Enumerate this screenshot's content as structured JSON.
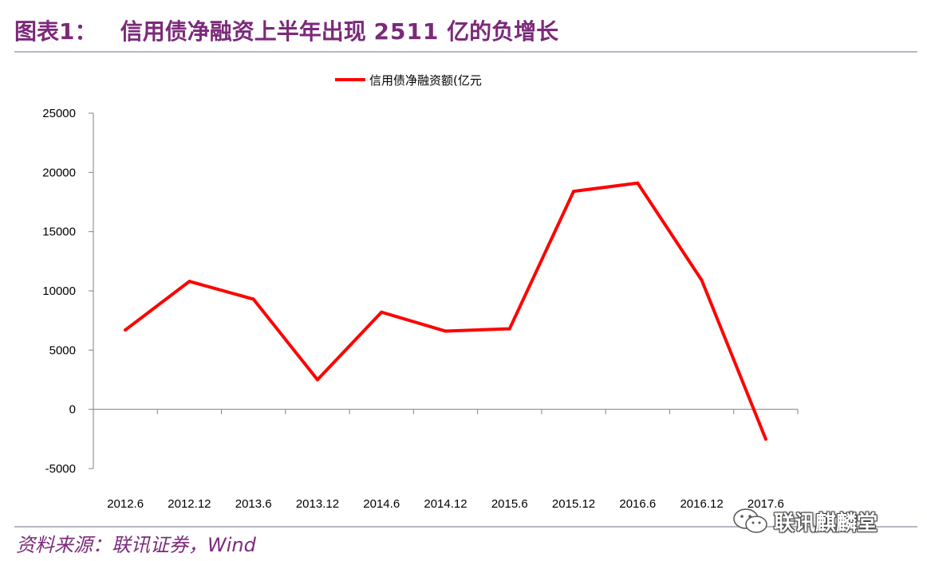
{
  "header": {
    "label": "图表1：",
    "title_pre": "信用债净融资上半年出现 ",
    "title_num": "2511",
    "title_post": " 亿的负增长"
  },
  "source": "资料来源：联讯证券，Wind",
  "watermark": {
    "text": "联讯麒麟堂",
    "icon": "wechat-icon"
  },
  "colors": {
    "accent": "#7b2a7a",
    "series": "#ff0000",
    "rule": "#b8b6c6"
  },
  "chart_data": {
    "type": "line",
    "legend": "top-center",
    "x": [
      "2012.6",
      "2012.12",
      "2013.6",
      "2013.12",
      "2014.6",
      "2014.12",
      "2015.6",
      "2015.12",
      "2016.6",
      "2016.12",
      "2017.6"
    ],
    "series": [
      {
        "name": "信用债净融资额(亿元",
        "values": [
          6700,
          10800,
          9300,
          2500,
          8200,
          6600,
          6800,
          18400,
          19100,
          10900,
          -2511
        ]
      }
    ],
    "ylim": [
      -5000,
      25000
    ],
    "yticks": [
      -5000,
      0,
      5000,
      10000,
      15000,
      20000,
      25000
    ],
    "grid": false
  }
}
